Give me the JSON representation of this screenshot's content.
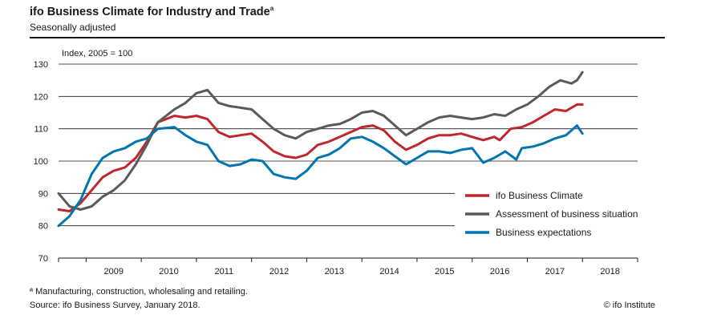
{
  "header": {
    "title": "ifo Business Climate for Industry and Trade",
    "title_marker": "a",
    "subtitle": "Seasonally adjusted"
  },
  "footer": {
    "footnote": "ª Manufacturing, construction, wholesaling and retailing.",
    "source": "Source: ifo Business Survey, January 2018.",
    "copyright": "© ifo Institute"
  },
  "chart_data": {
    "type": "line",
    "ylabel": "Index, 2005 = 100",
    "ylim": [
      70,
      130
    ],
    "yticks": [
      70,
      80,
      90,
      100,
      110,
      120,
      130
    ],
    "xlim": [
      2008.5,
      2019.0
    ],
    "xticks": [
      "2009",
      "2010",
      "2011",
      "2012",
      "2013",
      "2014",
      "2015",
      "2016",
      "2017",
      "2018"
    ],
    "grid": true,
    "legend_position": "lower-right",
    "series": [
      {
        "name": "ifo Business Climate",
        "color": "#c0272d",
        "points": [
          [
            2008.5,
            85
          ],
          [
            2008.7,
            84.5
          ],
          [
            2008.9,
            87
          ],
          [
            2009.1,
            91
          ],
          [
            2009.3,
            95
          ],
          [
            2009.5,
            97
          ],
          [
            2009.7,
            98
          ],
          [
            2009.9,
            101
          ],
          [
            2010.1,
            106
          ],
          [
            2010.3,
            112
          ],
          [
            2010.6,
            114
          ],
          [
            2010.8,
            113.5
          ],
          [
            2011.0,
            114
          ],
          [
            2011.2,
            113
          ],
          [
            2011.4,
            109
          ],
          [
            2011.6,
            107.5
          ],
          [
            2011.8,
            108
          ],
          [
            2012.0,
            108.5
          ],
          [
            2012.2,
            106
          ],
          [
            2012.4,
            103
          ],
          [
            2012.6,
            101.5
          ],
          [
            2012.8,
            101
          ],
          [
            2013.0,
            102
          ],
          [
            2013.2,
            105
          ],
          [
            2013.4,
            106
          ],
          [
            2013.6,
            107.5
          ],
          [
            2013.8,
            109
          ],
          [
            2014.0,
            110.5
          ],
          [
            2014.2,
            111
          ],
          [
            2014.4,
            109.5
          ],
          [
            2014.6,
            106
          ],
          [
            2014.8,
            103.5
          ],
          [
            2015.0,
            105
          ],
          [
            2015.2,
            107
          ],
          [
            2015.4,
            108
          ],
          [
            2015.6,
            108
          ],
          [
            2015.8,
            108.5
          ],
          [
            2016.0,
            107.5
          ],
          [
            2016.2,
            106.5
          ],
          [
            2016.4,
            107.5
          ],
          [
            2016.5,
            106.5
          ],
          [
            2016.7,
            110
          ],
          [
            2016.9,
            110.5
          ],
          [
            2017.1,
            112
          ],
          [
            2017.3,
            114
          ],
          [
            2017.5,
            116
          ],
          [
            2017.7,
            115.5
          ],
          [
            2017.9,
            117.5
          ],
          [
            2018.0,
            117.5
          ]
        ]
      },
      {
        "name": "Assessment of business situation",
        "color": "#5a5a5a",
        "points": [
          [
            2008.5,
            90
          ],
          [
            2008.7,
            86
          ],
          [
            2008.9,
            85
          ],
          [
            2009.1,
            86
          ],
          [
            2009.3,
            89
          ],
          [
            2009.5,
            91
          ],
          [
            2009.7,
            94
          ],
          [
            2009.9,
            99
          ],
          [
            2010.1,
            105
          ],
          [
            2010.3,
            112
          ],
          [
            2010.6,
            116
          ],
          [
            2010.8,
            118
          ],
          [
            2011.0,
            121
          ],
          [
            2011.2,
            122
          ],
          [
            2011.4,
            118
          ],
          [
            2011.6,
            117
          ],
          [
            2011.8,
            116.5
          ],
          [
            2012.0,
            116
          ],
          [
            2012.2,
            113
          ],
          [
            2012.4,
            110
          ],
          [
            2012.6,
            108
          ],
          [
            2012.8,
            107
          ],
          [
            2013.0,
            109
          ],
          [
            2013.2,
            110
          ],
          [
            2013.4,
            111
          ],
          [
            2013.6,
            111.5
          ],
          [
            2013.8,
            113
          ],
          [
            2014.0,
            115
          ],
          [
            2014.2,
            115.5
          ],
          [
            2014.4,
            114
          ],
          [
            2014.6,
            111
          ],
          [
            2014.8,
            108
          ],
          [
            2015.0,
            110
          ],
          [
            2015.2,
            112
          ],
          [
            2015.4,
            113.5
          ],
          [
            2015.6,
            114
          ],
          [
            2015.8,
            113.5
          ],
          [
            2016.0,
            113
          ],
          [
            2016.2,
            113.5
          ],
          [
            2016.4,
            114.5
          ],
          [
            2016.6,
            114
          ],
          [
            2016.8,
            116
          ],
          [
            2017.0,
            117.5
          ],
          [
            2017.2,
            120
          ],
          [
            2017.4,
            123
          ],
          [
            2017.6,
            125
          ],
          [
            2017.8,
            124
          ],
          [
            2017.9,
            125
          ],
          [
            2018.0,
            127.5
          ]
        ]
      },
      {
        "name": "Business expectations",
        "color": "#0075b0",
        "points": [
          [
            2008.5,
            80
          ],
          [
            2008.7,
            83
          ],
          [
            2008.9,
            88
          ],
          [
            2009.1,
            96
          ],
          [
            2009.3,
            101
          ],
          [
            2009.5,
            103
          ],
          [
            2009.7,
            104
          ],
          [
            2009.9,
            106
          ],
          [
            2010.1,
            107
          ],
          [
            2010.3,
            110
          ],
          [
            2010.6,
            110.5
          ],
          [
            2010.8,
            108
          ],
          [
            2011.0,
            106
          ],
          [
            2011.2,
            105
          ],
          [
            2011.4,
            100
          ],
          [
            2011.6,
            98.5
          ],
          [
            2011.8,
            99
          ],
          [
            2012.0,
            100.5
          ],
          [
            2012.2,
            100
          ],
          [
            2012.4,
            96
          ],
          [
            2012.6,
            95
          ],
          [
            2012.8,
            94.5
          ],
          [
            2013.0,
            97
          ],
          [
            2013.2,
            101
          ],
          [
            2013.4,
            102
          ],
          [
            2013.6,
            104
          ],
          [
            2013.8,
            107
          ],
          [
            2014.0,
            107.5
          ],
          [
            2014.2,
            106
          ],
          [
            2014.4,
            104
          ],
          [
            2014.6,
            101.5
          ],
          [
            2014.8,
            99
          ],
          [
            2015.0,
            101
          ],
          [
            2015.2,
            103
          ],
          [
            2015.4,
            103
          ],
          [
            2015.6,
            102.5
          ],
          [
            2015.8,
            103.5
          ],
          [
            2016.0,
            104
          ],
          [
            2016.2,
            99.5
          ],
          [
            2016.4,
            101
          ],
          [
            2016.6,
            103
          ],
          [
            2016.8,
            100.5
          ],
          [
            2016.9,
            104
          ],
          [
            2017.1,
            104.5
          ],
          [
            2017.3,
            105.5
          ],
          [
            2017.5,
            107
          ],
          [
            2017.7,
            108
          ],
          [
            2017.9,
            111
          ],
          [
            2018.0,
            108.5
          ]
        ]
      }
    ]
  }
}
